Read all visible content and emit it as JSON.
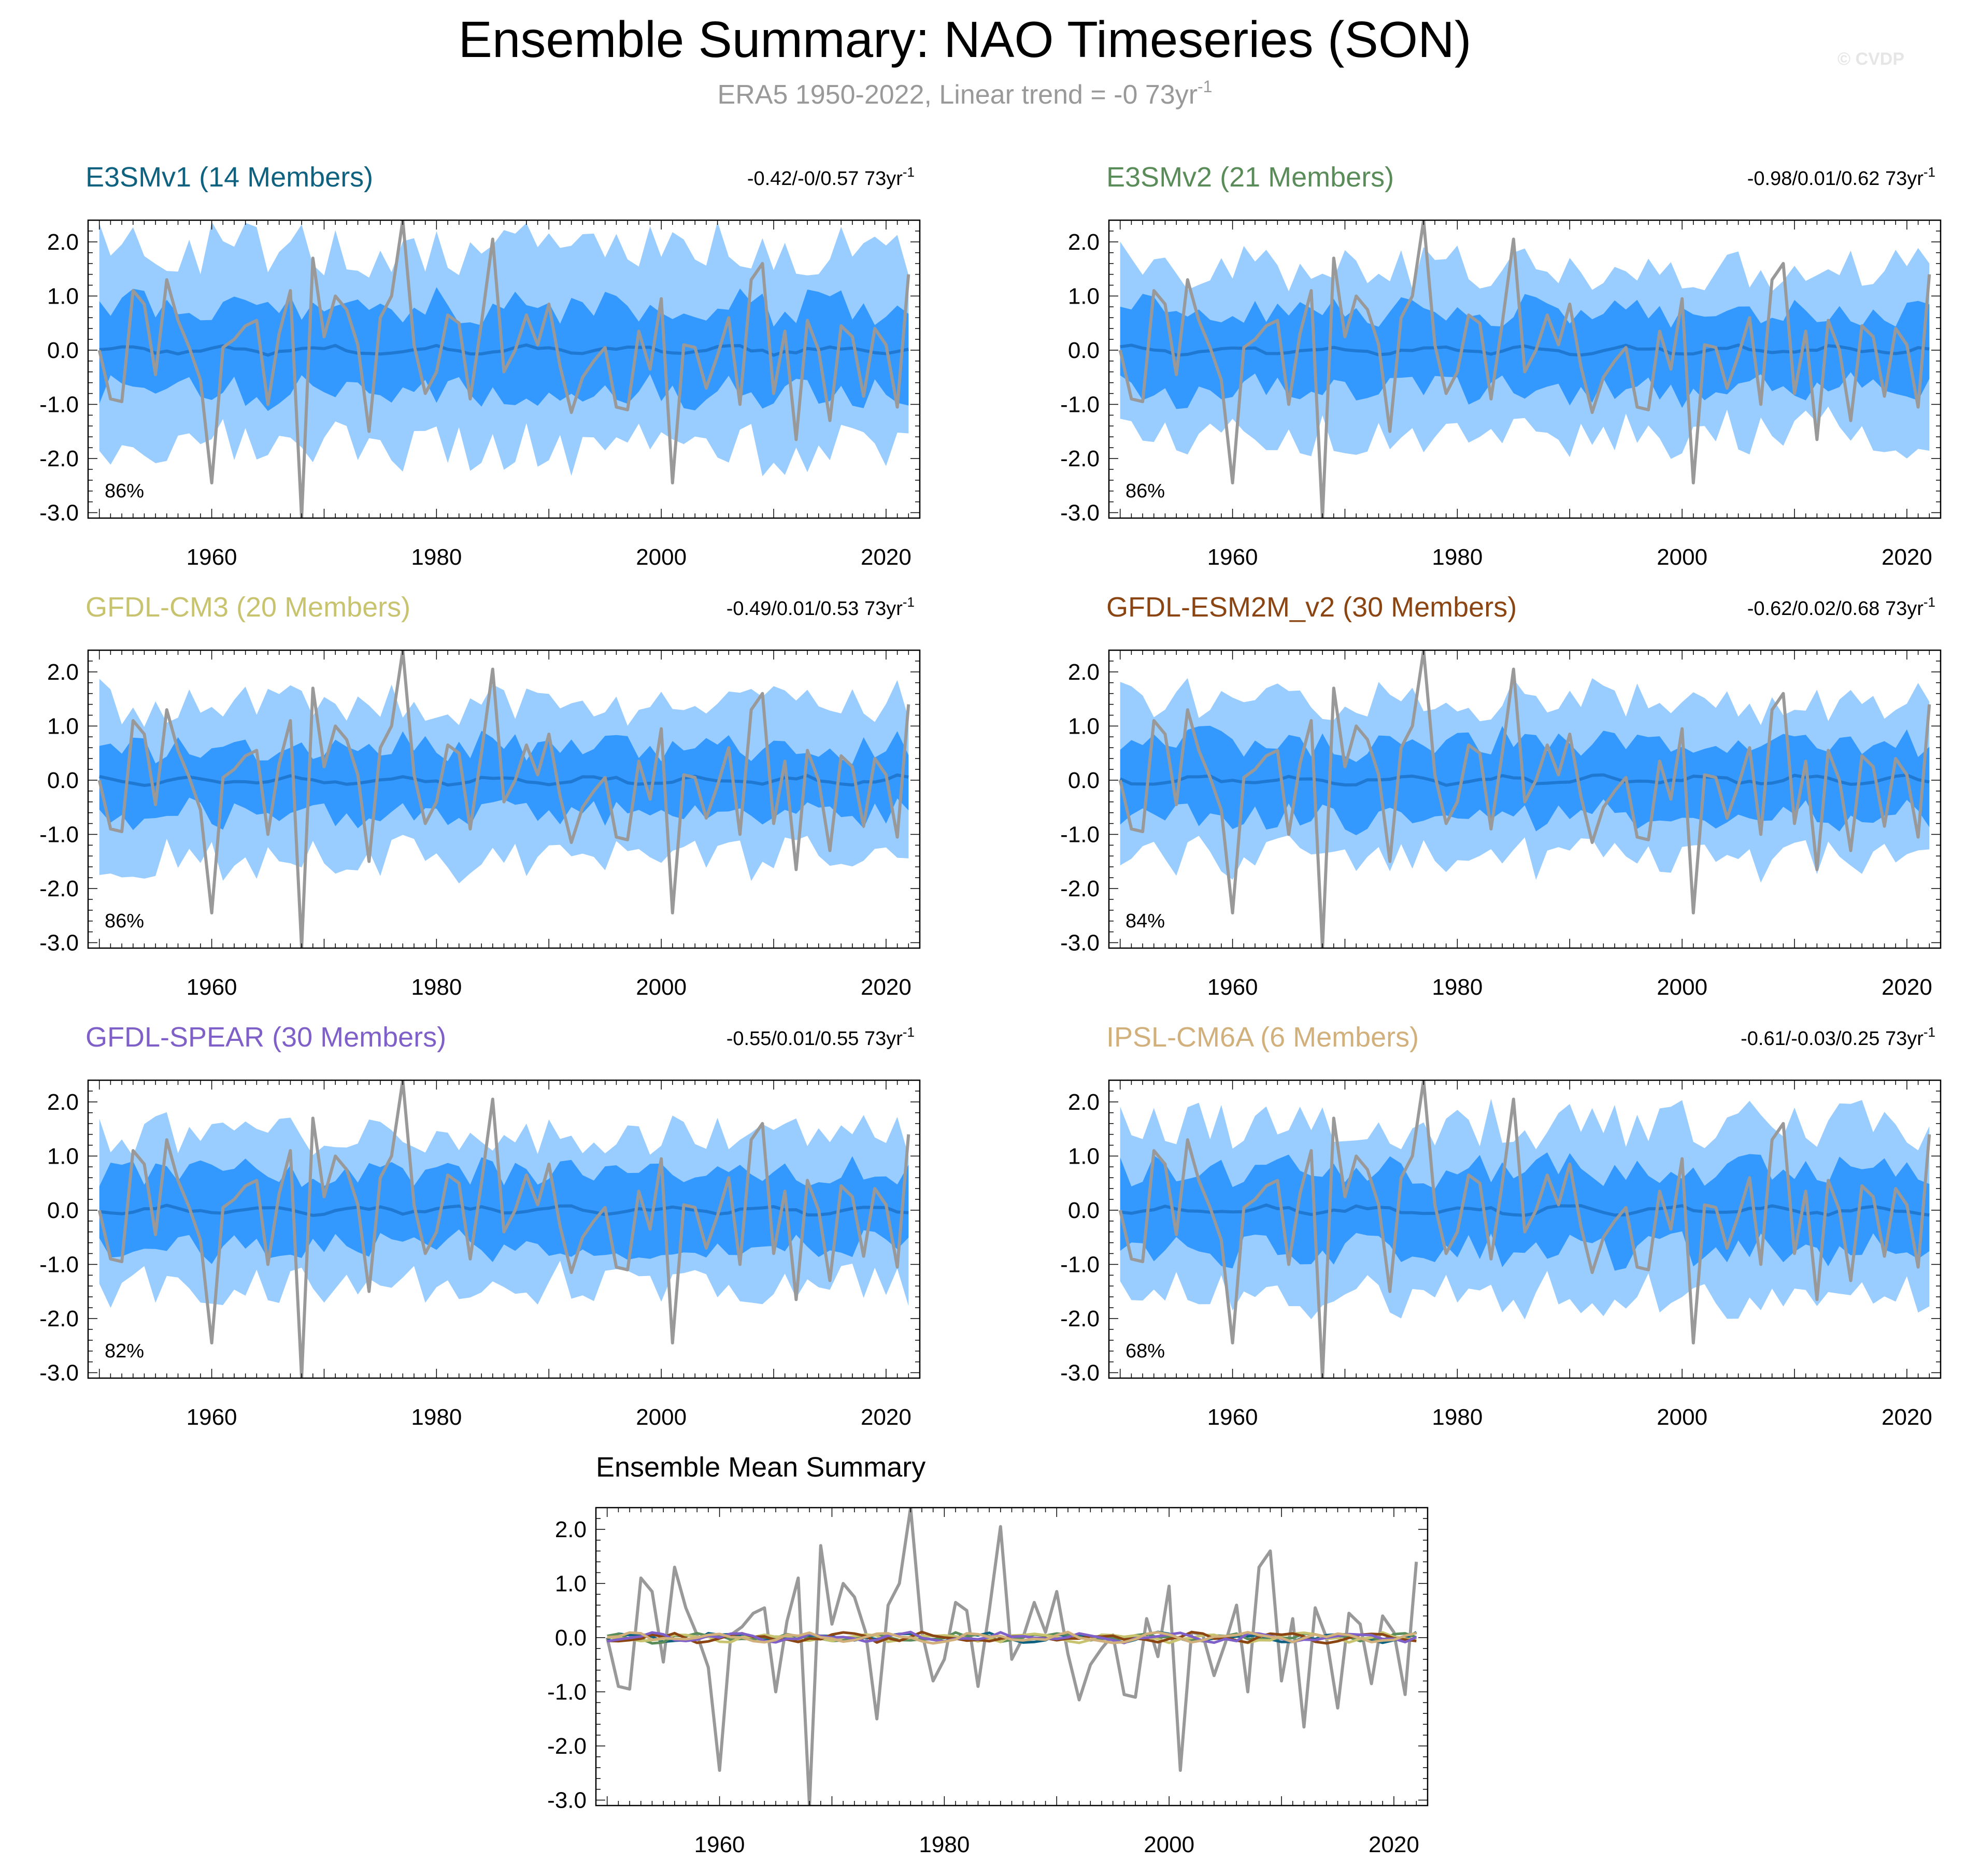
{
  "title": "Ensemble Summary: NAO Timeseries (SON)",
  "subtitle": "ERA5 1950-2022, Linear trend = -0 73yr",
  "subtitle_sup": "-1",
  "stats_unit": "73yr",
  "stats_sup": "-1",
  "copyright": "© CVDP",
  "colors": {
    "outer_spread": "#99ccff",
    "inner_spread": "#3399ff",
    "ensemble_mean": "#1f78d1",
    "observations": "#999999"
  },
  "chart_data": {
    "type": "line",
    "x_start": 1950,
    "x_end": 2022,
    "xlim": [
      1949,
      2023
    ],
    "ylim": [
      -3.1,
      2.4
    ],
    "xticks": [
      1960,
      1980,
      2000,
      2020
    ],
    "xtick_labels": [
      "1960",
      "1980",
      "2000",
      "2020"
    ],
    "yticks": [
      2,
      1,
      0,
      -1,
      -2,
      -3
    ],
    "ytick_labels": [
      "2.0",
      "1.0",
      "0.0",
      "-1.0",
      "-2.0",
      "-3.0"
    ],
    "observed": [
      0.0,
      -0.9,
      -0.95,
      1.1,
      0.85,
      -0.45,
      1.3,
      0.55,
      0.05,
      -0.55,
      -2.45,
      0.05,
      0.2,
      0.45,
      0.55,
      -1.0,
      0.3,
      1.1,
      -3.1,
      1.7,
      0.25,
      1.0,
      0.75,
      0.1,
      -1.5,
      0.6,
      1.0,
      2.4,
      0.1,
      -0.8,
      -0.4,
      0.65,
      0.5,
      -0.9,
      0.5,
      2.05,
      -0.4,
      0.0,
      0.65,
      0.1,
      0.85,
      -0.3,
      -1.15,
      -0.5,
      -0.2,
      0.05,
      -1.05,
      -1.1,
      0.35,
      -0.35,
      0.95,
      -2.45,
      0.1,
      0.05,
      -0.7,
      -0.1,
      0.6,
      -1.0,
      1.3,
      1.6,
      -0.8,
      0.35,
      -1.65,
      0.55,
      0.0,
      -1.3,
      0.45,
      0.25,
      -0.85,
      0.4,
      0.1,
      -1.05,
      1.4
    ],
    "panels": [
      {
        "name": "E3SMv1 (14 Members)",
        "color": "#0e6280",
        "stats": "-0.42/-0/0.57",
        "pct": "86%",
        "outer_amp": 1.85,
        "inner_amp": 0.78
      },
      {
        "name": "E3SMv2 (21 Members)",
        "color": "#5a8c5a",
        "stats": "-0.98/0.01/0.62",
        "pct": "86%",
        "outer_amp": 1.55,
        "inner_amp": 0.72
      },
      {
        "name": "GFDL-CM3 (20 Members)",
        "color": "#c8c36e",
        "stats": "-0.49/0.01/0.53",
        "pct": "86%",
        "outer_amp": 1.45,
        "inner_amp": 0.62
      },
      {
        "name": "GFDL-ESM2M_v2 (30 Members)",
        "color": "#8b4513",
        "stats": "-0.62/0.02/0.68",
        "pct": "84%",
        "outer_amp": 1.45,
        "inner_amp": 0.68
      },
      {
        "name": "GFDL-SPEAR (30 Members)",
        "color": "#7f5fc8",
        "stats": "-0.55/0.01/0.55",
        "pct": "82%",
        "outer_amp": 1.4,
        "inner_amp": 0.7
      },
      {
        "name": "IPSL-CM6A (6 Members)",
        "color": "#d2b07c",
        "stats": "-0.61/-0.03/0.25",
        "pct": "68%",
        "outer_amp": 1.6,
        "inner_amp": 0.75
      }
    ],
    "summary": {
      "title": "Ensemble Mean Summary",
      "series_colors": [
        "#0e6280",
        "#5a8c5a",
        "#c8c36e",
        "#8b4513",
        "#7f5fc8",
        "#d2b07c"
      ]
    }
  }
}
